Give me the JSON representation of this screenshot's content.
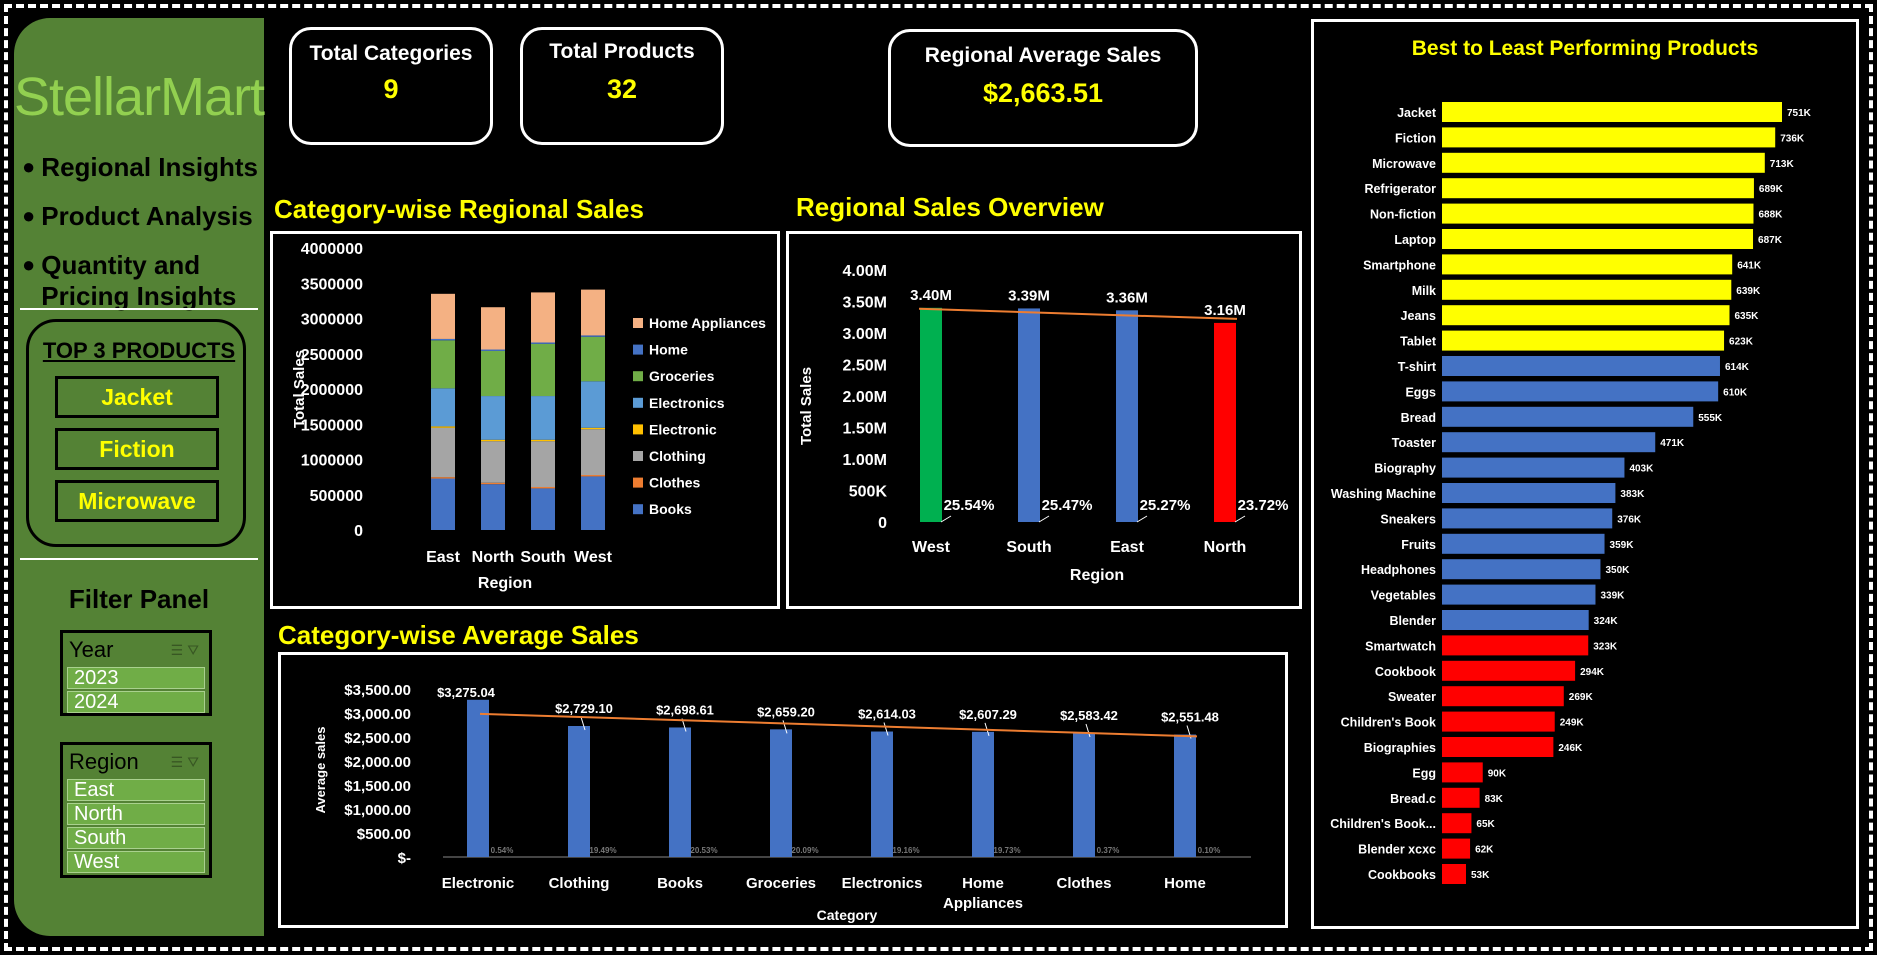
{
  "brand": "StellarMart",
  "nav": [
    "Regional Insights",
    "Product Analysis",
    "Quantity and",
    "Pricing Insights"
  ],
  "top3": {
    "title": "TOP 3 PRODUCTS",
    "items": [
      "Jacket",
      "Fiction",
      "Microwave"
    ]
  },
  "filter": {
    "title": "Filter Panel",
    "year": {
      "label": "Year",
      "options": [
        "2023",
        "2024"
      ]
    },
    "region": {
      "label": "Region",
      "options": [
        "East",
        "North",
        "South",
        "West"
      ]
    }
  },
  "kpis": {
    "categories": {
      "label": "Total Categories",
      "value": "9"
    },
    "products": {
      "label": "Total Products",
      "value": "32"
    },
    "avg_sales": {
      "label": "Regional Average Sales",
      "value": "$2,663.51"
    }
  },
  "titles": {
    "stacked": "Category-wise Regional Sales",
    "regional": "Regional Sales Overview",
    "avg": "Category-wise Average Sales",
    "products": "Best to Least Performing Products"
  },
  "colors": {
    "yellow": "#ffff00",
    "blue": "#4472c4",
    "red": "#ff0000",
    "green": "#00b050",
    "sidebar": "#548235",
    "trend": "#ed7d31"
  },
  "chart_data": [
    {
      "type": "bar",
      "stacked": true,
      "xlabel": "Region",
      "ylabel": "Total Sales",
      "ylim": [
        0,
        4000000
      ],
      "yticks": [
        "4000000",
        "3500000",
        "3000000",
        "2500000",
        "2000000",
        "1500000",
        "1000000",
        "500000",
        "0"
      ],
      "categories": [
        "East",
        "North",
        "South",
        "West"
      ],
      "legend_position": "right",
      "series": [
        {
          "name": "Books",
          "color": "#4472c4",
          "values": [
            730000,
            650000,
            590000,
            760000
          ]
        },
        {
          "name": "Clothes",
          "color": "#ed7d31",
          "values": [
            20000,
            20000,
            20000,
            20000
          ]
        },
        {
          "name": "Clothing",
          "color": "#a5a5a5",
          "values": [
            700000,
            590000,
            650000,
            650000
          ]
        },
        {
          "name": "Electronic",
          "color": "#ffc000",
          "values": [
            20000,
            20000,
            20000,
            20000
          ]
        },
        {
          "name": "Electronics",
          "color": "#5b9bd5",
          "values": [
            540000,
            620000,
            620000,
            660000
          ]
        },
        {
          "name": "Groceries",
          "color": "#70ad47",
          "values": [
            680000,
            640000,
            740000,
            630000
          ]
        },
        {
          "name": "Home",
          "color": "#4472c4",
          "values": [
            20000,
            20000,
            20000,
            20000
          ]
        },
        {
          "name": "Home Appliances",
          "color": "#f4b183",
          "values": [
            640000,
            600000,
            710000,
            650000
          ]
        }
      ]
    },
    {
      "type": "bar",
      "xlabel": "Region",
      "ylabel": "Total Sales",
      "ylim": [
        0,
        4000000
      ],
      "yticks": [
        "4.00M",
        "3.50M",
        "3.00M",
        "2.50M",
        "2.00M",
        "1.50M",
        "1.00M",
        "500K",
        "0"
      ],
      "categories": [
        "West",
        "South",
        "East",
        "North"
      ],
      "values": [
        3400000,
        3390000,
        3360000,
        3160000
      ],
      "value_labels": [
        "3.40M",
        "3.39M",
        "3.36M",
        "3.16M"
      ],
      "share_labels": [
        "25.54%",
        "25.47%",
        "25.27%",
        "23.72%"
      ],
      "bar_colors": [
        "#00b050",
        "#4472c4",
        "#4472c4",
        "#ff0000"
      ],
      "trendline": true
    },
    {
      "type": "bar",
      "xlabel": "Category",
      "ylabel": "Average sales",
      "ylim": [
        0,
        3500
      ],
      "yticks": [
        "$3,500.00",
        "$3,000.00",
        "$2,500.00",
        "$2,000.00",
        "$1,500.00",
        "$1,000.00",
        "$500.00",
        "$-"
      ],
      "categories": [
        "Electronic",
        "Clothing",
        "Books",
        "Groceries",
        "Electronics",
        "Home Appliances",
        "Clothes",
        "Home"
      ],
      "values": [
        3275.04,
        2729.1,
        2698.61,
        2659.2,
        2614.03,
        2607.29,
        2583.42,
        2551.48
      ],
      "value_labels": [
        "$3,275.04",
        "$2,729.10",
        "$2,698.61",
        "$2,659.20",
        "$2,614.03",
        "$2,607.29",
        "$2,583.42",
        "$2,551.48"
      ],
      "share_labels": [
        "0.54%",
        "19.49%",
        "20.53%",
        "20.09%",
        "19.16%",
        "19.73%",
        "0.37%",
        "0.10%"
      ],
      "trendline": true
    },
    {
      "type": "bar",
      "orientation": "horizontal",
      "categories": [
        "Jacket",
        "Fiction",
        "Microwave",
        "Refrigerator",
        "Non-fiction",
        "Laptop",
        "Smartphone",
        "Milk",
        "Jeans",
        "Tablet",
        "T-shirt",
        "Eggs",
        "Bread",
        "Toaster",
        "Biography",
        "Washing Machine",
        "Sneakers",
        "Fruits",
        "Headphones",
        "Vegetables",
        "Blender",
        "Smartwatch",
        "Cookbook",
        "Sweater",
        "Children's Book",
        "Biographies",
        "Egg",
        "Bread.c",
        "Children's Book...",
        "Blender xcxc",
        "Cookbooks"
      ],
      "values": [
        751000,
        736000,
        713000,
        689000,
        688000,
        687000,
        641000,
        639000,
        635000,
        623000,
        614000,
        610000,
        555000,
        471000,
        403000,
        383000,
        376000,
        359000,
        350000,
        339000,
        324000,
        323000,
        294000,
        269000,
        249000,
        246000,
        90000,
        83000,
        65000,
        62000,
        53000
      ],
      "value_labels": [
        "751K",
        "736K",
        "713K",
        "689K",
        "688K",
        "687K",
        "641K",
        "639K",
        "635K",
        "623K",
        "614K",
        "610K",
        "555K",
        "471K",
        "403K",
        "383K",
        "376K",
        "359K",
        "350K",
        "339K",
        "324K",
        "323K",
        "294K",
        "269K",
        "249K",
        "246K",
        "90K",
        "83K",
        "65K",
        "62K",
        "53K"
      ],
      "tiers": [
        "yellow",
        "yellow",
        "yellow",
        "yellow",
        "yellow",
        "yellow",
        "yellow",
        "yellow",
        "yellow",
        "yellow",
        "blue",
        "blue",
        "blue",
        "blue",
        "blue",
        "blue",
        "blue",
        "blue",
        "blue",
        "blue",
        "blue",
        "red",
        "red",
        "red",
        "red",
        "red",
        "red",
        "red",
        "red",
        "red",
        "red"
      ]
    }
  ]
}
